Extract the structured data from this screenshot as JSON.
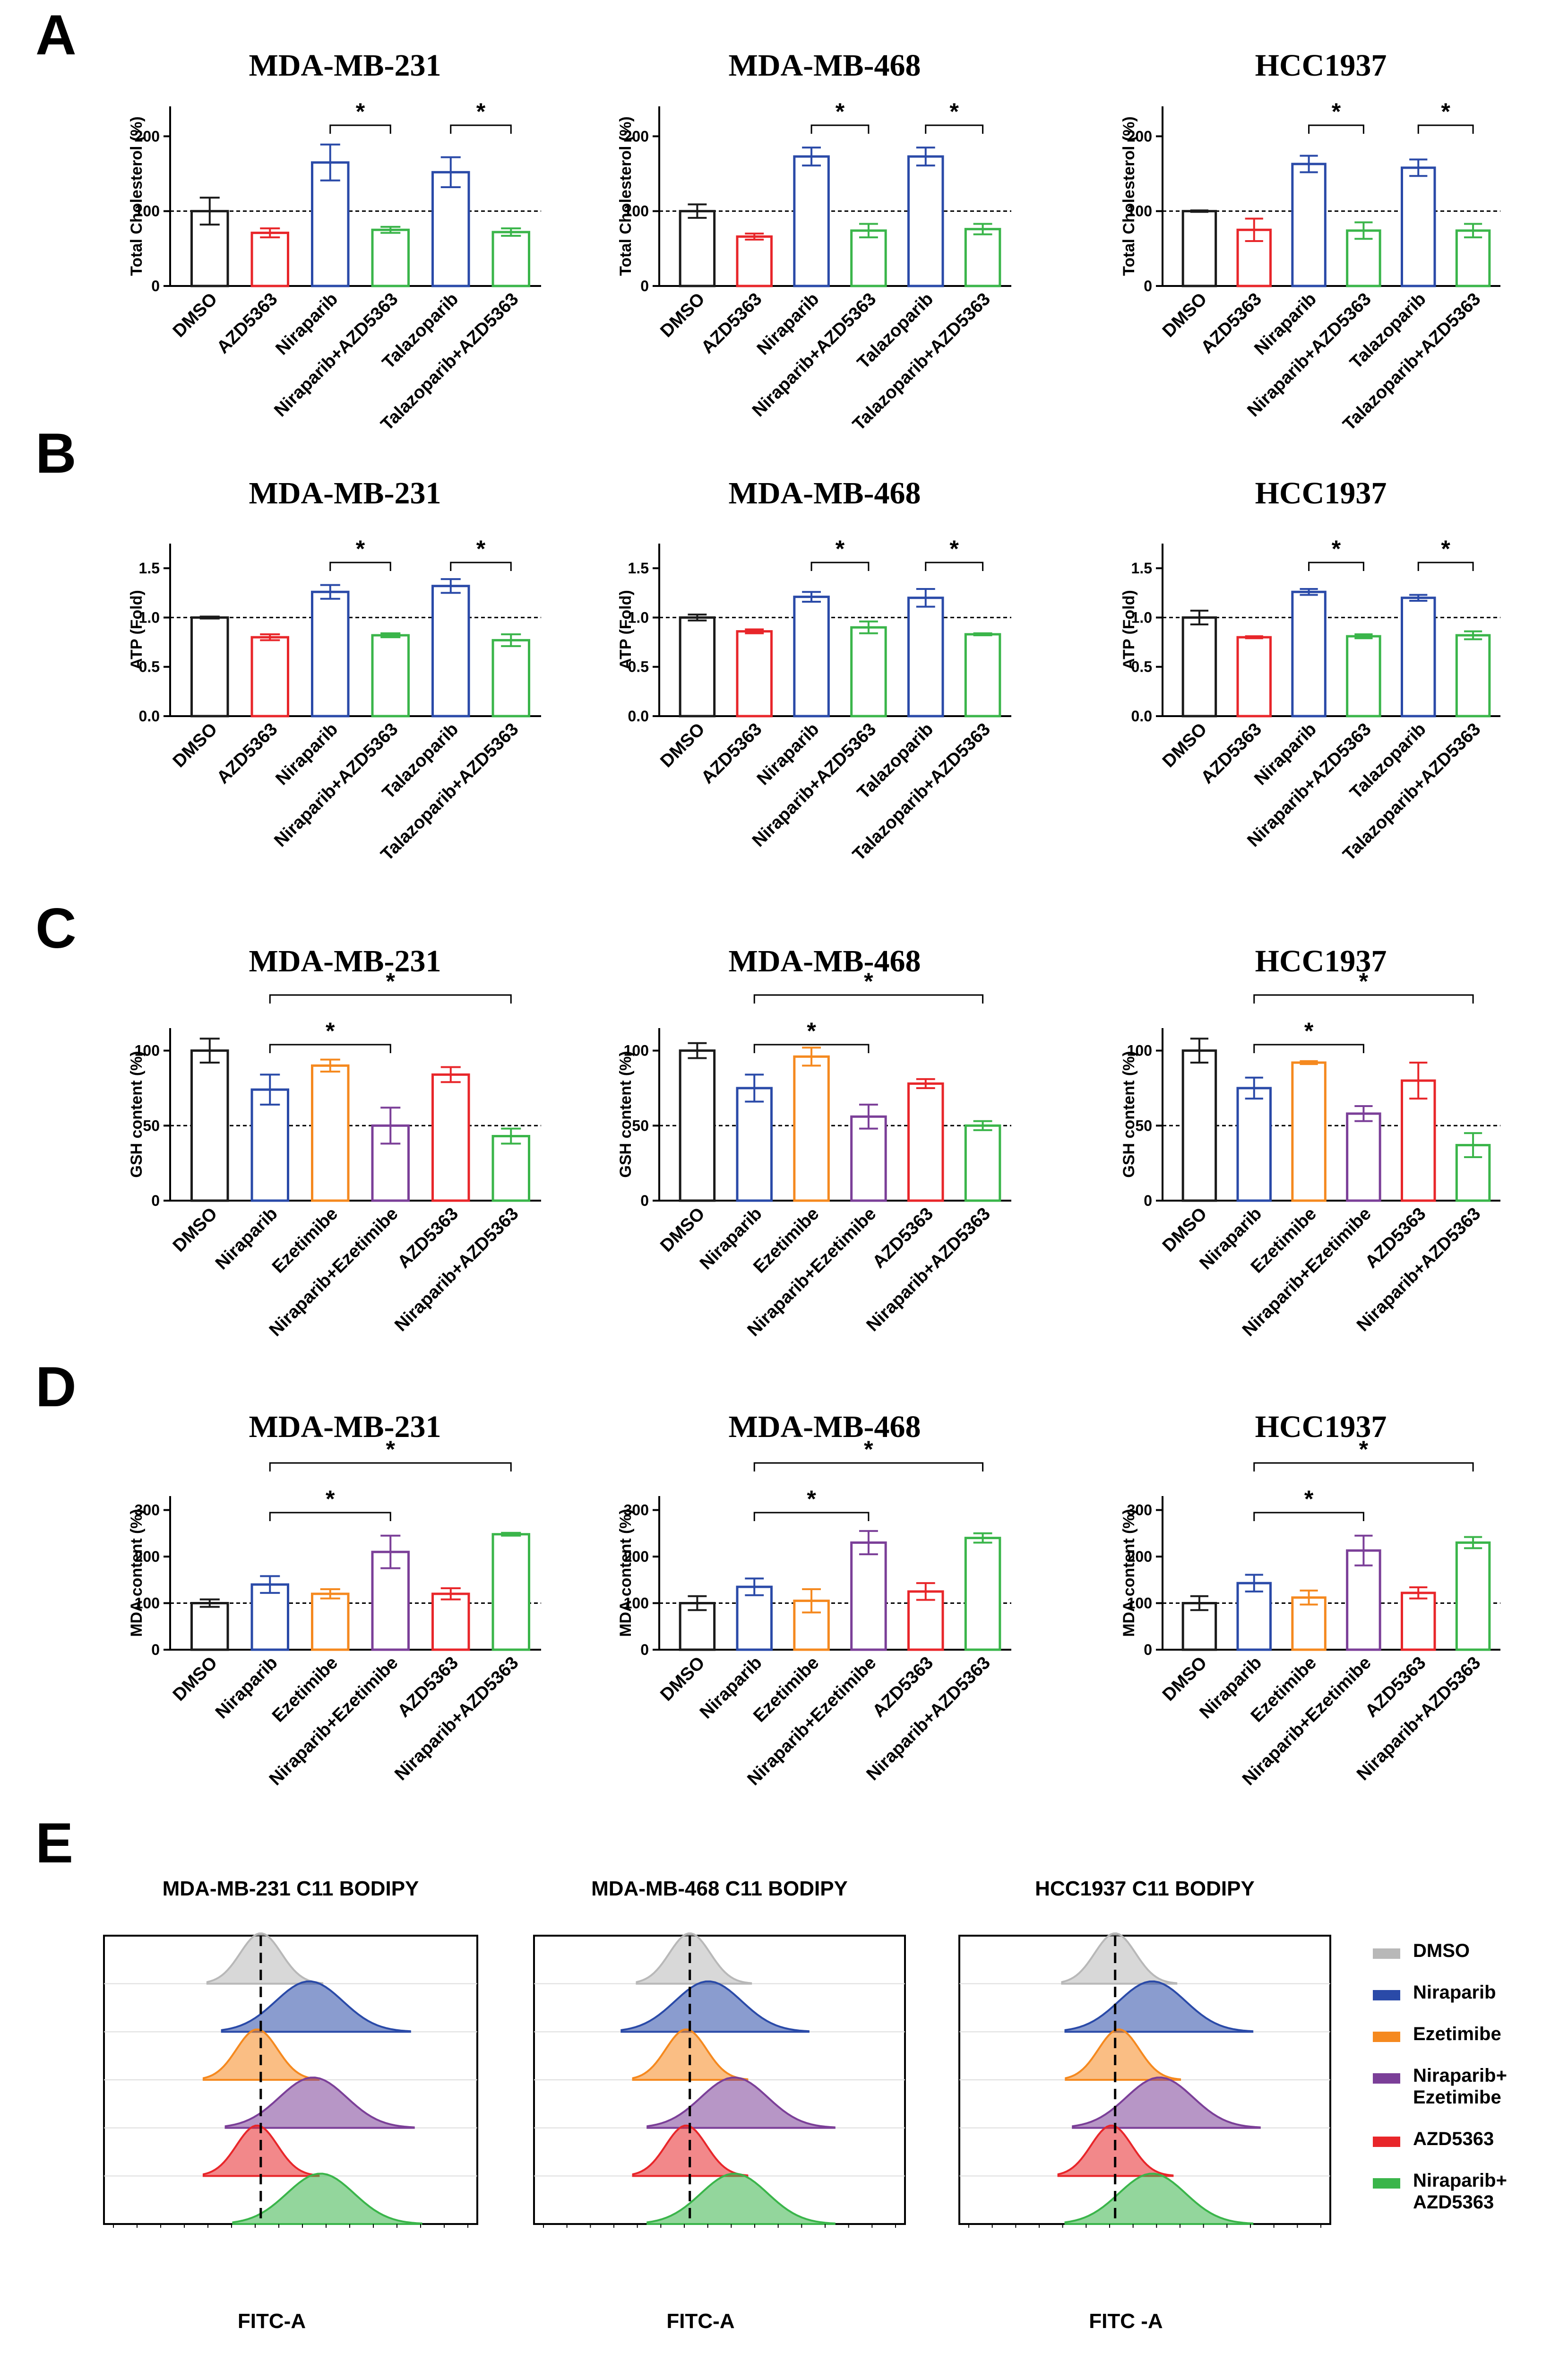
{
  "colors": {
    "black": "#1a1a1a",
    "red": "#e8262a",
    "blue": "#2a4aa8",
    "green": "#3ab54a",
    "orange": "#f5891f",
    "purple": "#7b3f98",
    "gray": "#b8b8b8"
  },
  "panels": [
    {
      "label": "A",
      "ylabel": "Total Cholesterol (%)",
      "yticks": [
        "0",
        "100",
        "200"
      ],
      "ref_line": 100,
      "ylim": [
        0,
        240
      ],
      "categories": [
        "DMSO",
        "AZD5363",
        "Niraparib",
        "Niraparib+AZD5363",
        "Talazoparib",
        "Talazoparib+AZD5363"
      ],
      "bar_colors": [
        "black",
        "red",
        "blue",
        "green",
        "blue",
        "green"
      ],
      "charts": [
        {
          "title": "MDA-MB-231",
          "type": "bar",
          "values": [
            100,
            71,
            165,
            75,
            152,
            72
          ],
          "errors": [
            18,
            6,
            24,
            4,
            20,
            5
          ],
          "sig": [
            {
              "from": 2,
              "to": 3,
              "label": "*"
            },
            {
              "from": 4,
              "to": 5,
              "label": "*"
            }
          ]
        },
        {
          "title": "MDA-MB-468",
          "type": "bar",
          "values": [
            100,
            66,
            173,
            74,
            173,
            76
          ],
          "errors": [
            9,
            4,
            12,
            9,
            12,
            7
          ],
          "sig": [
            {
              "from": 2,
              "to": 3,
              "label": "*"
            },
            {
              "from": 4,
              "to": 5,
              "label": "*"
            }
          ]
        },
        {
          "title": "HCC1937",
          "type": "bar",
          "values": [
            100,
            75,
            163,
            74,
            158,
            74
          ],
          "errors": [
            1,
            15,
            11,
            11,
            11,
            9
          ],
          "sig": [
            {
              "from": 2,
              "to": 3,
              "label": "*"
            },
            {
              "from": 4,
              "to": 5,
              "label": "*"
            }
          ]
        }
      ]
    },
    {
      "label": "B",
      "ylabel": "ATP (Fold)",
      "yticks": [
        "0.0",
        "0.5",
        "1.0",
        "1.5"
      ],
      "ref_line": 1.0,
      "ylim": [
        0,
        1.75
      ],
      "categories": [
        "DMSO",
        "AZD5363",
        "Niraparib",
        "Niraparib+AZD5363",
        "Talazoparib",
        "Talazoparib+AZD5363"
      ],
      "bar_colors": [
        "black",
        "red",
        "blue",
        "green",
        "blue",
        "green"
      ],
      "charts": [
        {
          "title": "MDA-MB-231",
          "type": "bar",
          "values": [
            1.0,
            0.8,
            1.26,
            0.82,
            1.32,
            0.77
          ],
          "errors": [
            0.01,
            0.03,
            0.07,
            0.02,
            0.07,
            0.06
          ],
          "sig": [
            {
              "from": 2,
              "to": 3,
              "label": "*"
            },
            {
              "from": 4,
              "to": 5,
              "label": "*"
            }
          ]
        },
        {
          "title": "MDA-MB-468",
          "type": "bar",
          "values": [
            1.0,
            0.86,
            1.21,
            0.9,
            1.2,
            0.83
          ],
          "errors": [
            0.03,
            0.02,
            0.05,
            0.06,
            0.09,
            0.01
          ],
          "sig": [
            {
              "from": 2,
              "to": 3,
              "label": "*"
            },
            {
              "from": 4,
              "to": 5,
              "label": "*"
            }
          ]
        },
        {
          "title": "HCC1937",
          "type": "bar",
          "values": [
            1.0,
            0.8,
            1.26,
            0.81,
            1.2,
            0.82
          ],
          "errors": [
            0.07,
            0.01,
            0.03,
            0.02,
            0.03,
            0.04
          ],
          "sig": [
            {
              "from": 2,
              "to": 3,
              "label": "*"
            },
            {
              "from": 4,
              "to": 5,
              "label": "*"
            }
          ]
        }
      ]
    },
    {
      "label": "C",
      "ylabel": "GSH content (%)",
      "yticks": [
        "0",
        "50",
        "100"
      ],
      "ref_line": 50,
      "ylim": [
        0,
        115
      ],
      "categories": [
        "DMSO",
        "Niraparib",
        "Ezetimibe",
        "Niraparib+Ezetimibe",
        "AZD5363",
        "Niraparib+AZD5363"
      ],
      "bar_colors": [
        "black",
        "blue",
        "orange",
        "purple",
        "red",
        "green"
      ],
      "charts": [
        {
          "title": "MDA-MB-231",
          "type": "bar",
          "values": [
            100,
            74,
            90,
            50,
            84,
            43
          ],
          "errors": [
            8,
            10,
            4,
            12,
            5,
            5
          ],
          "sig": [
            {
              "from": 1,
              "to": 3,
              "label": "*"
            },
            {
              "from": 1,
              "to": 5,
              "label": "*"
            }
          ]
        },
        {
          "title": "MDA-MB-468",
          "type": "bar",
          "values": [
            100,
            75,
            96,
            56,
            78,
            50
          ],
          "errors": [
            5,
            9,
            6,
            8,
            3,
            3
          ],
          "sig": [
            {
              "from": 1,
              "to": 3,
              "label": "*"
            },
            {
              "from": 1,
              "to": 5,
              "label": "*"
            }
          ]
        },
        {
          "title": "HCC1937",
          "type": "bar",
          "values": [
            100,
            75,
            92,
            58,
            80,
            37
          ],
          "errors": [
            8,
            7,
            1,
            5,
            12,
            8
          ],
          "sig": [
            {
              "from": 1,
              "to": 3,
              "label": "*"
            },
            {
              "from": 1,
              "to": 5,
              "label": "*"
            }
          ]
        }
      ]
    },
    {
      "label": "D",
      "ylabel": "MDA content (%)",
      "yticks": [
        "0",
        "100",
        "200",
        "300"
      ],
      "ref_line": 100,
      "ylim": [
        0,
        330
      ],
      "categories": [
        "DMSO",
        "Niraparib",
        "Ezetimibe",
        "Niraparib+Ezetimibe",
        "AZD5363",
        "Niraparib+AZD5363"
      ],
      "bar_colors": [
        "black",
        "blue",
        "orange",
        "purple",
        "red",
        "green"
      ],
      "charts": [
        {
          "title": "MDA-MB-231",
          "type": "bar",
          "values": [
            100,
            140,
            120,
            210,
            120,
            248
          ],
          "errors": [
            8,
            18,
            10,
            35,
            12,
            3
          ],
          "sig": [
            {
              "from": 1,
              "to": 3,
              "label": "*"
            },
            {
              "from": 1,
              "to": 5,
              "label": "*"
            }
          ]
        },
        {
          "title": "MDA-MB-468",
          "type": "bar",
          "values": [
            100,
            135,
            105,
            230,
            125,
            240
          ],
          "errors": [
            15,
            18,
            25,
            25,
            18,
            10
          ],
          "sig": [
            {
              "from": 1,
              "to": 3,
              "label": "*"
            },
            {
              "from": 1,
              "to": 5,
              "label": "*"
            }
          ]
        },
        {
          "title": "HCC1937",
          "type": "bar",
          "values": [
            100,
            143,
            112,
            213,
            122,
            230
          ],
          "errors": [
            15,
            18,
            15,
            32,
            12,
            12
          ],
          "sig": [
            {
              "from": 1,
              "to": 3,
              "label": "*"
            },
            {
              "from": 1,
              "to": 5,
              "label": "*"
            }
          ]
        }
      ]
    }
  ],
  "panel_e": {
    "label": "E",
    "xlabel": "FITC-A",
    "xlabels": [
      "FITC-A",
      "FITC-A",
      "FITC -A"
    ],
    "titles": [
      "MDA-MB-231 C11 BODIPY",
      "MDA-MB-468 C11 BODIPY",
      "HCC1937 C11 BODIPY"
    ],
    "track_colors": [
      "gray",
      "blue",
      "orange",
      "purple",
      "red",
      "green"
    ],
    "peak_positions": [
      [
        0.42,
        0.55,
        0.41,
        0.56,
        0.41,
        0.58
      ],
      [
        0.42,
        0.47,
        0.41,
        0.54,
        0.41,
        0.54
      ],
      [
        0.42,
        0.52,
        0.43,
        0.54,
        0.41,
        0.52
      ]
    ],
    "legend": [
      {
        "color": "gray",
        "lines": [
          "DMSO"
        ]
      },
      {
        "color": "blue",
        "lines": [
          "Niraparib"
        ]
      },
      {
        "color": "orange",
        "lines": [
          "Ezetimibe"
        ]
      },
      {
        "color": "purple",
        "lines": [
          "Niraparib+",
          "Ezetimibe"
        ]
      },
      {
        "color": "red",
        "lines": [
          "AZD5363"
        ]
      },
      {
        "color": "green",
        "lines": [
          "Niraparib+",
          "AZD5363"
        ]
      }
    ]
  }
}
